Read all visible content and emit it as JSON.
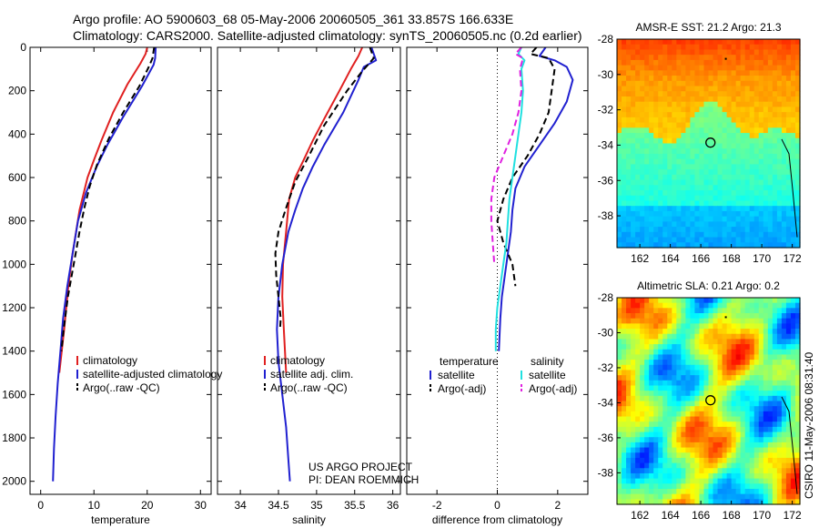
{
  "header": {
    "line1": "Argo profile: AO 5900603_68 05-May-2006 20060505_361 33.857S 166.633E",
    "line2": "Climatology: CARS2000. Satellite-adjusted climatology: synTS_20060505.nc (0.2d earlier)"
  },
  "side_label": "CSIRO 11-May-2006 08:31:40",
  "chart_data": [
    {
      "type": "line",
      "name": "temperature-profile",
      "xlabel": "temperature",
      "ylabel": "",
      "xlim": [
        -2,
        32
      ],
      "ylim": [
        0,
        2060
      ],
      "y_reversed": true,
      "xticks": [
        0,
        10,
        20,
        30
      ],
      "yticks": [
        0,
        200,
        400,
        600,
        800,
        1000,
        1200,
        1400,
        1600,
        1800,
        2000
      ],
      "legend": {
        "placement": "lower-right",
        "entries": [
          {
            "label": "climatology",
            "color": "#e02020"
          },
          {
            "label": "satellite-adjusted climatology",
            "color": "#2020d0"
          },
          {
            "label": "Argo(..raw -QC)",
            "color": "#000000"
          }
        ]
      },
      "series": [
        {
          "color": "#e02020",
          "dash": false,
          "x": [
            20.0,
            19.7,
            18.7,
            16.3,
            13.6,
            11.4,
            10.0,
            8.8,
            7.3,
            6.0,
            5.2,
            4.4,
            3.5
          ],
          "y": [
            0,
            30,
            75,
            170,
            300,
            430,
            520,
            600,
            750,
            950,
            1100,
            1300,
            1500
          ]
        },
        {
          "color": "#2020d0",
          "dash": false,
          "x": [
            21.6,
            21.5,
            21.2,
            19.0,
            15.5,
            12.5,
            10.5,
            8.5,
            7.0,
            6.0,
            5.0,
            4.2,
            3.7,
            3.2,
            2.8,
            2.5,
            2.3
          ],
          "y": [
            0,
            50,
            80,
            180,
            320,
            450,
            550,
            670,
            800,
            950,
            1100,
            1250,
            1400,
            1550,
            1700,
            1850,
            2000
          ]
        },
        {
          "color": "#000000",
          "dash": true,
          "x": [
            21.3,
            21.0,
            20.3,
            18.5,
            15.5,
            12.8,
            10.6,
            9.2,
            8.2,
            7.3,
            6.2,
            5.1,
            4.3,
            3.9
          ],
          "y": [
            0,
            50,
            90,
            180,
            300,
            420,
            540,
            640,
            740,
            850,
            1000,
            1150,
            1300,
            1400
          ]
        }
      ]
    },
    {
      "type": "line",
      "name": "salinity-profile",
      "xlabel": "salinity",
      "ylabel": "",
      "xlim": [
        33.7,
        36.1
      ],
      "ylim": [
        0,
        2060
      ],
      "y_reversed": true,
      "xticks": [
        34,
        34.5,
        35,
        35.5,
        36
      ],
      "legend": {
        "placement": "lower-right",
        "entries": [
          {
            "label": "climatology",
            "color": "#e02020"
          },
          {
            "label": "satellite adj. clim.",
            "color": "#2020d0"
          },
          {
            "label": "Argo(..raw -QC)",
            "color": "#000000"
          }
        ]
      },
      "annotation": [
        "US ARGO PROJECT",
        "PI: DEAN ROEMMICH"
      ],
      "series": [
        {
          "color": "#e02020",
          "dash": false,
          "x": [
            35.6,
            35.55,
            35.45,
            35.3,
            35.1,
            34.95,
            34.83,
            34.72,
            34.64,
            34.6,
            34.56,
            34.55,
            34.57,
            34.6
          ],
          "y": [
            0,
            40,
            100,
            200,
            330,
            430,
            520,
            600,
            700,
            850,
            1000,
            1150,
            1300,
            1500
          ]
        },
        {
          "color": "#2020d0",
          "dash": false,
          "x": [
            35.72,
            35.78,
            35.62,
            35.55,
            35.35,
            35.1,
            34.95,
            34.82,
            34.72,
            34.63,
            34.55,
            34.5,
            34.48,
            34.5,
            34.55,
            34.6,
            34.63,
            34.65
          ],
          "y": [
            0,
            60,
            90,
            150,
            300,
            450,
            550,
            650,
            750,
            850,
            1000,
            1150,
            1300,
            1450,
            1600,
            1750,
            1900,
            2000
          ]
        },
        {
          "color": "#000000",
          "dash": true,
          "x": [
            35.7,
            35.75,
            35.6,
            35.4,
            35.1,
            34.9,
            34.72,
            34.6,
            34.5,
            34.46,
            34.47,
            34.5,
            34.53,
            34.52
          ],
          "y": [
            0,
            50,
            110,
            200,
            360,
            500,
            620,
            740,
            850,
            950,
            1050,
            1150,
            1250,
            1300
          ]
        }
      ]
    },
    {
      "type": "line",
      "name": "difference-profile",
      "xlabel": "difference from climatology",
      "ylabel": "",
      "xlim": [
        -3,
        3
      ],
      "ylim": [
        0,
        2060
      ],
      "y_reversed": true,
      "xticks": [
        -2,
        0,
        2
      ],
      "reference_line_x": 0,
      "legend": {
        "placement": "lower-center",
        "col1_title": "temperature",
        "col2_title": "salinity",
        "entries": [
          {
            "label": "satellite",
            "color": "#2020d0",
            "column": 1
          },
          {
            "label": "Argo(-adj)",
            "color": "#000000",
            "column": 1
          },
          {
            "label": "satellite",
            "color": "#20e0e0",
            "column": 2
          },
          {
            "label": "Argo(-adj)",
            "color": "#e020e0",
            "column": 2
          }
        ]
      },
      "series": [
        {
          "name": "temperature satellite",
          "color": "#2020d0",
          "dash": false,
          "x": [
            1.6,
            1.4,
            1.9,
            2.3,
            2.5,
            2.3,
            1.9,
            1.4,
            0.9,
            0.6,
            0.5,
            0.45,
            0.35,
            0.25,
            0.15,
            0.1,
            0.05
          ],
          "y": [
            0,
            40,
            60,
            90,
            150,
            250,
            350,
            450,
            550,
            650,
            750,
            850,
            950,
            1050,
            1150,
            1250,
            1400
          ]
        },
        {
          "name": "temperature Argo(-adj)",
          "color": "#000000",
          "dash": true,
          "x": [
            1.3,
            1.1,
            1.7,
            1.9,
            1.8,
            1.7,
            1.4,
            1.0,
            0.5,
            0.2,
            0.0,
            0.2,
            0.5,
            0.6
          ],
          "y": [
            0,
            30,
            50,
            100,
            200,
            300,
            400,
            500,
            600,
            700,
            800,
            900,
            1000,
            1100
          ]
        },
        {
          "name": "salinity satellite",
          "color": "#20e0e0",
          "dash": false,
          "x": [
            0.8,
            0.7,
            0.9,
            0.8,
            0.85,
            0.8,
            0.7,
            0.6,
            0.5,
            0.4,
            0.35,
            0.3,
            0.2,
            0.1,
            0.0,
            -0.05,
            -0.05
          ],
          "y": [
            0,
            30,
            60,
            100,
            200,
            300,
            400,
            500,
            600,
            700,
            800,
            900,
            1000,
            1100,
            1200,
            1300,
            1400
          ]
        },
        {
          "name": "salinity Argo(-adj)",
          "color": "#e020e0",
          "dash": true,
          "x": [
            0.8,
            0.6,
            0.85,
            0.75,
            0.8,
            0.7,
            0.5,
            0.2,
            -0.1,
            -0.2,
            -0.2,
            -0.15,
            -0.1
          ],
          "y": [
            0,
            30,
            50,
            100,
            200,
            300,
            400,
            500,
            600,
            700,
            800,
            900,
            1000
          ]
        }
      ]
    },
    {
      "type": "heatmap",
      "name": "sst-map",
      "title": "AMSR-E SST: 21.2 Argo: 21.3",
      "xlim": [
        160.5,
        172.5
      ],
      "ylim": [
        -39.8,
        -28
      ],
      "xticks": [
        162,
        164,
        166,
        168,
        170,
        172
      ],
      "yticks": [
        -28,
        -30,
        -32,
        -34,
        -36,
        -38
      ],
      "argo_position": {
        "lon": 166.633,
        "lat": -33.857
      }
    },
    {
      "type": "heatmap",
      "name": "sla-map",
      "title": "Altimetric SLA: 0.21 Argo: 0.2",
      "xlim": [
        160.5,
        172.5
      ],
      "ylim": [
        -39.8,
        -28
      ],
      "xticks": [
        162,
        164,
        166,
        168,
        170,
        172
      ],
      "yticks": [
        -28,
        -30,
        -32,
        -34,
        -36,
        -38
      ],
      "argo_position": {
        "lon": 166.633,
        "lat": -33.857
      }
    }
  ]
}
